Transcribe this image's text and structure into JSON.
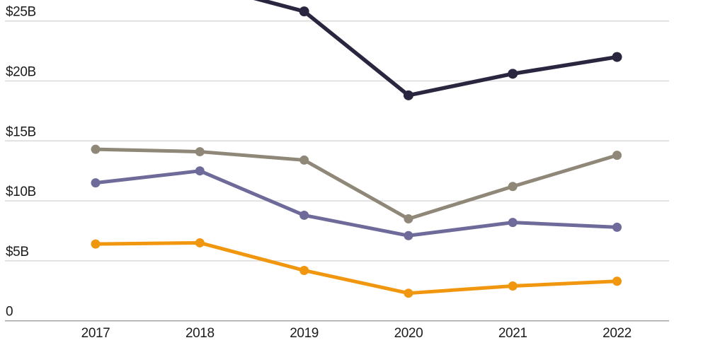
{
  "figure": {
    "background_color": "#ffffff",
    "text_color": "#1c1c1c",
    "gridline_color": "#d9d9d9",
    "zero_axis_color": "#a3a3a3"
  },
  "chart_data": {
    "type": "line",
    "title": "",
    "xlabel": "",
    "ylabel": "",
    "unit": "billions of dollars",
    "grid": "horizontal",
    "legend": "none visible",
    "x": [
      "2017",
      "2018",
      "2019",
      "2020",
      "2021",
      "2022"
    ],
    "y_ticks": [
      {
        "value": 0,
        "label": "0"
      },
      {
        "value": 5,
        "label": "$5B"
      },
      {
        "value": 10,
        "label": "$10B"
      },
      {
        "value": 15,
        "label": "$15B"
      },
      {
        "value": 20,
        "label": "$20B"
      },
      {
        "value": 25,
        "label": "$25B"
      }
    ],
    "ylim_visible": [
      0,
      26.7
    ],
    "series": [
      {
        "name": "dark-navy",
        "color": "#2a2640",
        "values": [
          null,
          28.1,
          25.8,
          18.8,
          20.6,
          22.0
        ],
        "clipped_above_top": true
      },
      {
        "name": "taupe-gray",
        "color": "#8f8879",
        "values": [
          14.3,
          14.1,
          13.4,
          8.5,
          11.2,
          13.8
        ],
        "clipped_above_top": false
      },
      {
        "name": "slate-purple",
        "color": "#6e6a9a",
        "values": [
          11.5,
          12.5,
          8.8,
          7.1,
          8.2,
          7.8
        ],
        "clipped_above_top": false
      },
      {
        "name": "orange",
        "color": "#f0970f",
        "values": [
          6.4,
          6.5,
          4.2,
          2.3,
          2.9,
          3.3
        ],
        "clipped_above_top": false
      }
    ]
  }
}
